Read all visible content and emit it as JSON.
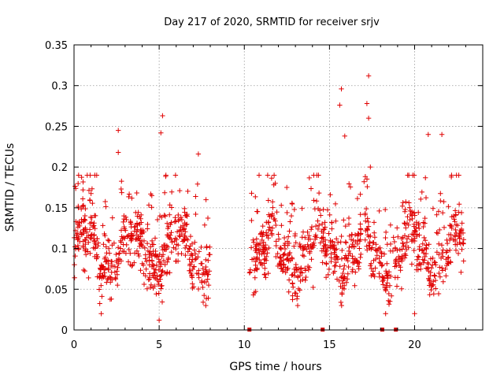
{
  "chart_data": {
    "type": "scatter",
    "title": "Day 217 of 2020, SRMTID for receiver srjv",
    "xlabel": "GPS time / hours",
    "ylabel": "SRMTID / TECUs",
    "xlim": [
      0,
      24
    ],
    "ylim": [
      0,
      0.35
    ],
    "x_ticks": [
      0,
      5,
      10,
      15,
      20
    ],
    "x_tick_labels": [
      "0",
      "5",
      "10",
      "15",
      "20"
    ],
    "y_ticks": [
      0,
      0.05,
      0.1,
      0.15,
      0.2,
      0.25,
      0.3,
      0.35
    ],
    "y_tick_labels": [
      "0",
      "0.05",
      "0.1",
      "0.15",
      "0.2",
      "0.25",
      "0.3",
      "0.35"
    ],
    "grid": true,
    "color": "#e00000",
    "marker": "plus",
    "data_gap_hours": [
      8.0,
      10.3
    ],
    "outliers": [
      {
        "x": 2.6,
        "y": 0.245
      },
      {
        "x": 2.6,
        "y": 0.218
      },
      {
        "x": 5.2,
        "y": 0.263
      },
      {
        "x": 5.1,
        "y": 0.242
      },
      {
        "x": 5.0,
        "y": 0.012
      },
      {
        "x": 7.3,
        "y": 0.216
      },
      {
        "x": 15.7,
        "y": 0.296
      },
      {
        "x": 15.6,
        "y": 0.276
      },
      {
        "x": 15.9,
        "y": 0.238
      },
      {
        "x": 17.3,
        "y": 0.312
      },
      {
        "x": 17.2,
        "y": 0.278
      },
      {
        "x": 17.3,
        "y": 0.26
      },
      {
        "x": 17.4,
        "y": 0.2
      },
      {
        "x": 21.6,
        "y": 0.24
      },
      {
        "x": 20.8,
        "y": 0.24
      },
      {
        "x": 1.6,
        "y": 0.02
      },
      {
        "x": 20.0,
        "y": 0.02
      },
      {
        "x": 18.3,
        "y": 0.02
      }
    ],
    "axis_markers_x": [
      10.3,
      14.6,
      18.1,
      18.9
    ]
  }
}
